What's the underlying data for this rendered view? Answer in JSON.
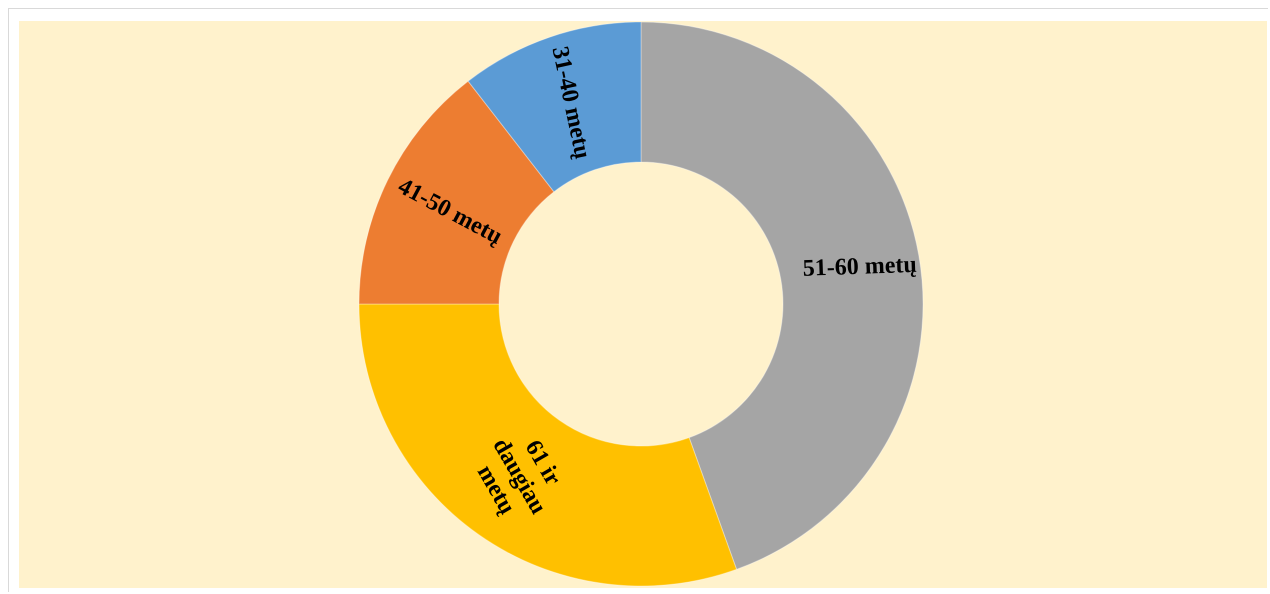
{
  "chart_data": {
    "type": "pie",
    "variant": "donut",
    "title": "",
    "start_angle_deg": 0,
    "direction": "clockwise",
    "background_color": "#FFF2CC",
    "slices": [
      {
        "label": "51-60 metų",
        "value": 44.5,
        "color": "#A5A5A5",
        "label_lines": [
          "51-60 metų"
        ]
      },
      {
        "label": "61 ir daugiau metų",
        "value": 30.5,
        "color": "#FFC000",
        "label_lines": [
          "61 ir",
          "daugiau",
          "metų"
        ]
      },
      {
        "label": "41-50 metų",
        "value": 14.5,
        "color": "#ED7D31",
        "label_lines": [
          "41-50 metų"
        ]
      },
      {
        "label": "31-40 metų",
        "value": 10.5,
        "color": "#5B9BD5",
        "label_lines": [
          "31-40 metų"
        ]
      }
    ]
  }
}
